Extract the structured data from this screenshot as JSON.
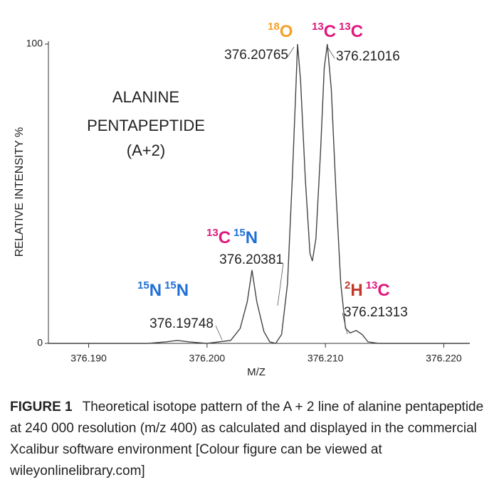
{
  "chart_data": {
    "type": "line",
    "x": [
      376.1866,
      376.195,
      376.1965,
      376.1975,
      376.1985,
      376.2,
      376.202,
      376.2028,
      376.2034,
      376.2038,
      376.2042,
      376.2048,
      376.2053,
      376.2058,
      376.2063,
      376.2068,
      376.2072,
      376.2075,
      376.20765,
      376.2079,
      376.2083,
      376.2087,
      376.2089,
      376.2092,
      376.2096,
      376.2099,
      376.21016,
      376.2105,
      376.2109,
      376.2113,
      376.2117,
      376.2121,
      376.2126,
      376.2131,
      376.2136,
      376.2145,
      376.2222
    ],
    "values": [
      0,
      0,
      0.5,
      1,
      0.5,
      0,
      1,
      5,
      14,
      24.5,
      14,
      4,
      0.5,
      0,
      3,
      20,
      55,
      85,
      100,
      88,
      55,
      30,
      27.5,
      35,
      65,
      92,
      100,
      85,
      50,
      20,
      5,
      3.5,
      4.3,
      3,
      0.5,
      0,
      0
    ],
    "color": "#444444",
    "xlim": [
      376.1866,
      376.2222
    ],
    "xticks": [
      {
        "value": 376.19,
        "label": "376.190"
      },
      {
        "value": 376.2,
        "label": "376.200"
      },
      {
        "value": 376.21,
        "label": "376.210"
      },
      {
        "value": 376.22,
        "label": "376.220"
      }
    ],
    "ylim": [
      0,
      100
    ],
    "yticks": [
      0,
      100
    ],
    "xlabel": "M/Z",
    "ylabel": "RELATIVE INTENSITY %",
    "title_lines": [
      "ALANINE",
      "PENTAPEPTIDE",
      "(A+2)"
    ],
    "mass_labels": [
      "376.20765",
      "376.21016",
      "376.20381",
      "376.19748",
      "376.21313"
    ],
    "isotope_labels": [
      [
        {
          "sup": "18",
          "text": "O",
          "color": "#f5a02a"
        }
      ],
      [
        {
          "sup": "13",
          "text": "C",
          "color": "#e0187c"
        },
        {
          "sup": "13",
          "text": "C",
          "color": "#e0187c"
        }
      ],
      [
        {
          "sup": "13",
          "text": "C",
          "color": "#e0187c"
        },
        {
          "sup": "15",
          "text": "N",
          "color": "#1f6fd6"
        }
      ],
      [
        {
          "sup": "15",
          "text": "N",
          "color": "#1f6fd6"
        },
        {
          "sup": "15",
          "text": "N",
          "color": "#1f6fd6"
        }
      ],
      [
        {
          "sup": "2",
          "text": "H",
          "color": "#c0392b"
        },
        {
          "sup": "13",
          "text": "C",
          "color": "#e0187c"
        }
      ]
    ]
  },
  "caption": {
    "label": "FIGURE 1",
    "text": "Theoretical isotope pattern of the A + 2 line of alanine pentapeptide at 240 000 resolution (m/z 400) as calculated and displayed in the commercial Xcalibur software environment [Colour figure can be viewed at wileyonlinelibrary.com]"
  }
}
